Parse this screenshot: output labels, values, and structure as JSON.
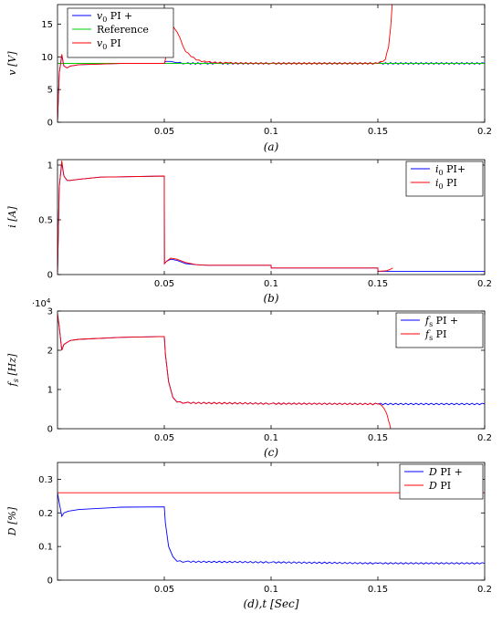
{
  "chart_data": [
    {
      "type": "line",
      "caption": "(a)",
      "ylabel": "v [V]",
      "xlim": [
        0,
        0.2
      ],
      "ylim": [
        0,
        18
      ],
      "xticks": [
        0.05,
        0.1,
        0.15,
        0.2
      ],
      "xtick_labels": [
        "0.05",
        "0.1",
        "0.15",
        "0.2"
      ],
      "yticks": [
        0,
        5,
        10,
        15
      ],
      "ytick_labels": [
        "0",
        "5",
        "10",
        "15"
      ],
      "grid": false,
      "legend_position": "top-left",
      "series": [
        {
          "name": "v0 PI +",
          "color": "#0000ff",
          "ripple": true,
          "x": [
            0,
            0.0008,
            0.002,
            0.003,
            0.0045,
            0.006,
            0.01,
            0.03,
            0.05,
            0.0505,
            0.053,
            0.056,
            0.06,
            0.068,
            0.075,
            0.1,
            0.15,
            0.2
          ],
          "y": [
            0,
            7.5,
            10.2,
            8.6,
            8.3,
            8.6,
            8.8,
            9,
            9,
            9.3,
            9.3,
            9.1,
            9,
            9,
            9,
            9,
            9,
            9
          ]
        },
        {
          "name": "Reference",
          "color": "#00cc00",
          "ripple": false,
          "x": [
            0,
            0.2
          ],
          "y": [
            9,
            9
          ]
        },
        {
          "name": "v0 PI",
          "color": "#ff0000",
          "ripple": true,
          "x": [
            0,
            0.0008,
            0.002,
            0.003,
            0.0045,
            0.006,
            0.01,
            0.03,
            0.05,
            0.0505,
            0.052,
            0.054,
            0.056,
            0.06,
            0.065,
            0.07,
            0.08,
            0.1,
            0.15,
            0.1535,
            0.155,
            0.156,
            0.1567
          ],
          "y": [
            0,
            7.5,
            10.4,
            8.6,
            8.3,
            8.6,
            8.8,
            9,
            9,
            9.6,
            13.5,
            14.7,
            13.8,
            10.8,
            9.5,
            9.2,
            9.05,
            9,
            9,
            9.6,
            11.5,
            14.5,
            18
          ]
        }
      ]
    },
    {
      "type": "line",
      "caption": "(b)",
      "ylabel": "i [A]",
      "xlim": [
        0,
        0.2
      ],
      "ylim": [
        0,
        1.05
      ],
      "xticks": [
        0.05,
        0.1,
        0.15,
        0.2
      ],
      "xtick_labels": [
        "0.05",
        "0.1",
        "0.15",
        "0.2"
      ],
      "yticks": [
        0,
        0.5,
        1
      ],
      "ytick_labels": [
        "0",
        "0.5",
        "1"
      ],
      "grid": false,
      "legend_position": "top-right",
      "series": [
        {
          "name": "i0 PI+",
          "color": "#0000ff",
          "ripple": false,
          "x": [
            0,
            0.0008,
            0.002,
            0.003,
            0.0045,
            0.006,
            0.01,
            0.02,
            0.05,
            0.0501,
            0.051,
            0.053,
            0.056,
            0.06,
            0.065,
            0.07,
            0.1,
            0.1001,
            0.15,
            0.1501,
            0.2
          ],
          "y": [
            0,
            0.8,
            1.02,
            0.9,
            0.86,
            0.86,
            0.87,
            0.89,
            0.9,
            0.1,
            0.12,
            0.14,
            0.13,
            0.1,
            0.09,
            0.085,
            0.085,
            0.06,
            0.06,
            0.03,
            0.03
          ]
        },
        {
          "name": "i0 PI",
          "color": "#ff0000",
          "ripple": false,
          "x": [
            0,
            0.0008,
            0.002,
            0.003,
            0.0045,
            0.006,
            0.01,
            0.02,
            0.05,
            0.0501,
            0.051,
            0.053,
            0.056,
            0.06,
            0.065,
            0.07,
            0.1,
            0.1001,
            0.15,
            0.1501,
            0.154,
            0.1555,
            0.157
          ],
          "y": [
            0,
            0.8,
            1.04,
            0.9,
            0.86,
            0.86,
            0.87,
            0.89,
            0.9,
            0.1,
            0.12,
            0.15,
            0.14,
            0.11,
            0.09,
            0.085,
            0.085,
            0.06,
            0.06,
            0.03,
            0.035,
            0.045,
            0.06
          ]
        }
      ]
    },
    {
      "type": "line",
      "caption": "(c)",
      "ylabel": "fs [Hz]",
      "scale_note": "·10^4",
      "xlim": [
        0,
        0.2
      ],
      "ylim": [
        0,
        3
      ],
      "xticks": [
        0.05,
        0.1,
        0.15,
        0.2
      ],
      "xtick_labels": [
        "0.05",
        "0.1",
        "0.15",
        "0.2"
      ],
      "yticks": [
        0,
        1,
        2,
        3
      ],
      "ytick_labels": [
        "0",
        "1",
        "2",
        "3"
      ],
      "grid": false,
      "legend_position": "top-right",
      "series": [
        {
          "name": "fs PI +",
          "color": "#0000ff",
          "ripple": true,
          "x": [
            0,
            0.0008,
            0.002,
            0.003,
            0.0045,
            0.006,
            0.01,
            0.03,
            0.05,
            0.0505,
            0.052,
            0.054,
            0.056,
            0.06,
            0.1,
            0.15,
            0.2
          ],
          "y": [
            2.9,
            2.6,
            2.0,
            2.15,
            2.2,
            2.25,
            2.28,
            2.33,
            2.35,
            1.9,
            1.2,
            0.8,
            0.68,
            0.66,
            0.64,
            0.63,
            0.63
          ]
        },
        {
          "name": "fs PI",
          "color": "#ff0000",
          "ripple": true,
          "x": [
            0,
            0.0008,
            0.002,
            0.003,
            0.0045,
            0.006,
            0.01,
            0.03,
            0.05,
            0.0505,
            0.052,
            0.054,
            0.056,
            0.06,
            0.1,
            0.15,
            0.152,
            0.154,
            0.155,
            0.156
          ],
          "y": [
            2.95,
            2.6,
            2.0,
            2.15,
            2.2,
            2.25,
            2.28,
            2.33,
            2.35,
            1.9,
            1.2,
            0.8,
            0.68,
            0.66,
            0.64,
            0.63,
            0.58,
            0.4,
            0.2,
            0
          ]
        }
      ]
    },
    {
      "type": "line",
      "caption": "(d),t [Sec]",
      "ylabel": "D [%]",
      "xlim": [
        0,
        0.2
      ],
      "ylim": [
        0,
        0.35
      ],
      "xticks": [
        0.05,
        0.1,
        0.15,
        0.2
      ],
      "xtick_labels": [
        "0.05",
        "0.1",
        "0.15",
        "0.2"
      ],
      "yticks": [
        0,
        0.1,
        0.2,
        0.3
      ],
      "ytick_labels": [
        "0",
        "0.1",
        "0.2",
        "0.3"
      ],
      "grid": false,
      "legend_position": "top-right",
      "series": [
        {
          "name": "D PI +",
          "color": "#0000ff",
          "ripple": true,
          "x": [
            0,
            0.0008,
            0.002,
            0.003,
            0.005,
            0.01,
            0.03,
            0.05,
            0.0505,
            0.052,
            0.054,
            0.056,
            0.06,
            0.1,
            0.15,
            0.2
          ],
          "y": [
            0.26,
            0.23,
            0.19,
            0.2,
            0.205,
            0.21,
            0.217,
            0.218,
            0.17,
            0.1,
            0.07,
            0.056,
            0.055,
            0.053,
            0.05,
            0.05
          ]
        },
        {
          "name": "D PI",
          "color": "#ff0000",
          "ripple": false,
          "x": [
            0,
            0.2
          ],
          "y": [
            0.26,
            0.26
          ]
        }
      ]
    }
  ]
}
